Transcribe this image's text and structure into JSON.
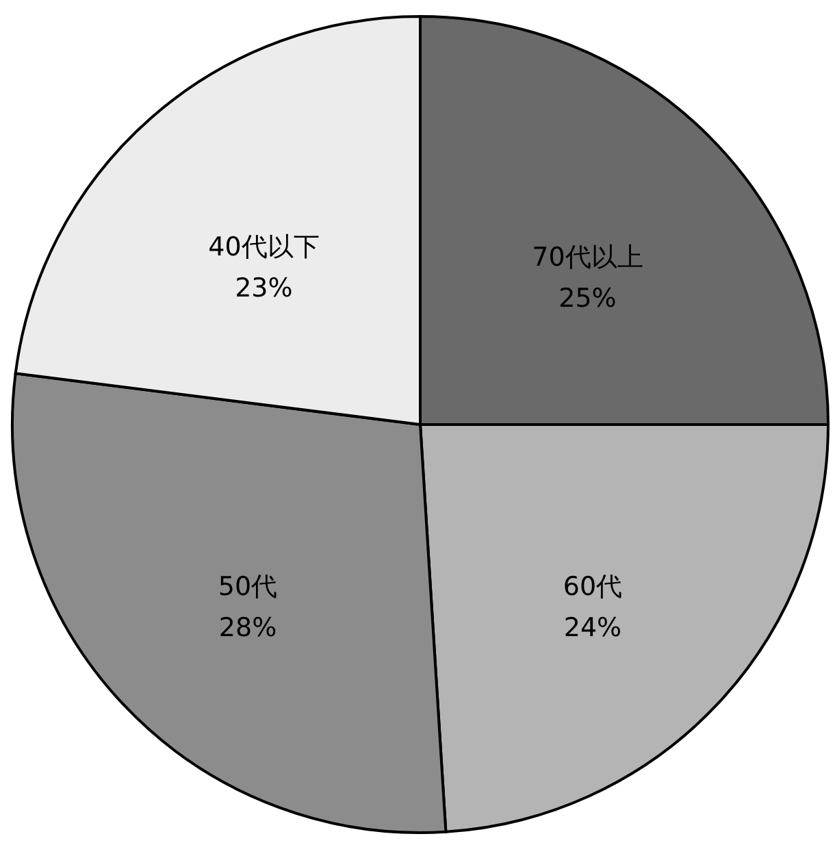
{
  "chart_data": {
    "type": "pie",
    "categories": [
      "70代以上",
      "60代",
      "50代",
      "40代以下"
    ],
    "values": [
      25,
      24,
      28,
      23
    ],
    "colors": [
      "#6a6a6a",
      "#b4b4b4",
      "#8c8c8c",
      "#ececec"
    ],
    "value_labels": [
      "25%",
      "24%",
      "28%",
      "23%"
    ],
    "legend": false
  }
}
